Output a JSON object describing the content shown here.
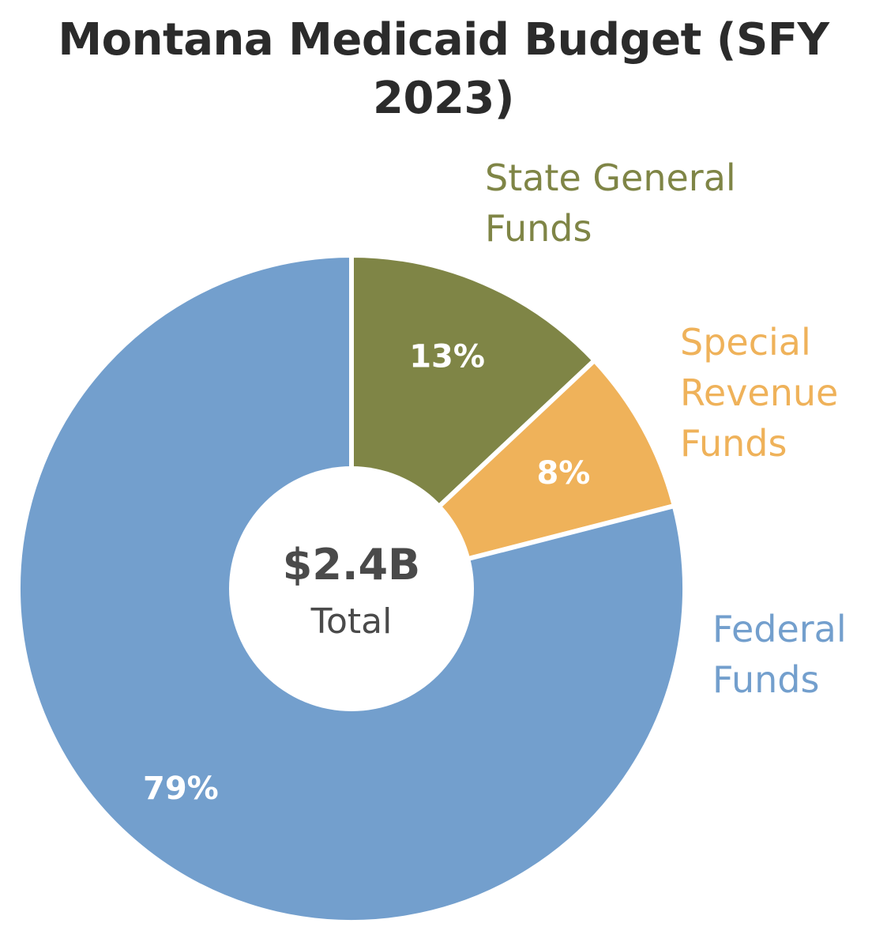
{
  "chart_data": {
    "type": "pie",
    "title_lines": [
      "Montana Medicaid Budget (SFY",
      "2023)"
    ],
    "center": {
      "value": "$2.4B",
      "label": "Total"
    },
    "slices": [
      {
        "name_lines": [
          "State General",
          "Funds"
        ],
        "value": 13,
        "label": "13%",
        "color": "#7f8546"
      },
      {
        "name_lines": [
          "Special",
          "Revenue",
          "Funds"
        ],
        "value": 8,
        "label": "8%",
        "color": "#efb25a"
      },
      {
        "name_lines": [
          "Federal",
          "Funds"
        ],
        "value": 79,
        "label": "79%",
        "color": "#739fcd"
      }
    ]
  }
}
